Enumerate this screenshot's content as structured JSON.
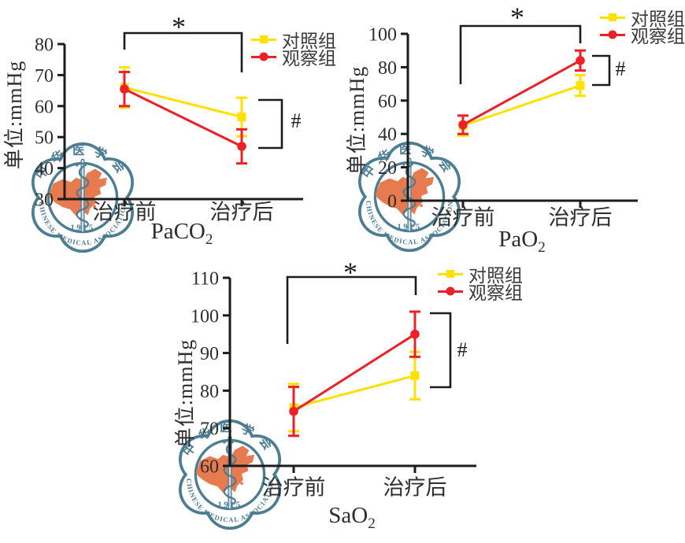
{
  "figure": {
    "background": "#ffffff"
  },
  "colors": {
    "axis": "#1c1c1c",
    "text": "#2e2e2e",
    "legend_text": "#3a3a3a",
    "control": "#ffe100",
    "observe": "#ec2027"
  },
  "watermark": {
    "top_text": "中华医学会",
    "bottom_text": "CHINESE MEDICAL ASSOCIATION",
    "year_text": "1915",
    "outline_color": "#4d7d92",
    "map_color": "#e87a50",
    "staff_color": "#cddee6"
  },
  "chart_data": [
    {
      "type": "line",
      "title_main": "PaCO",
      "title_sub": "2",
      "y_label": "单位:mmHg",
      "ylim": [
        30,
        80
      ],
      "yticks": [
        30,
        40,
        50,
        60,
        70,
        80
      ],
      "categories": [
        "治疗前",
        "治疗后"
      ],
      "series": [
        {
          "name": "对照组",
          "marker": "square",
          "color": "#ffe100",
          "values": [
            66,
            56.5
          ],
          "errors": [
            6.5,
            6.2
          ]
        },
        {
          "name": "观察组",
          "marker": "circle",
          "color": "#ec2027",
          "values": [
            65.5,
            47
          ],
          "errors": [
            5.5,
            5.5
          ]
        }
      ],
      "annotations": {
        "star": "*",
        "hash": "#"
      },
      "legend_position": "top-right",
      "grid": false
    },
    {
      "type": "line",
      "title_main": "PaO",
      "title_sub": "2",
      "y_label": "单位:mmHg",
      "ylim": [
        0,
        100
      ],
      "yticks": [
        0,
        20,
        40,
        60,
        80,
        100
      ],
      "categories": [
        "治疗前",
        "治疗后"
      ],
      "series": [
        {
          "name": "对照组",
          "marker": "square",
          "color": "#ffe100",
          "values": [
            45,
            69
          ],
          "errors": [
            6,
            6.2
          ]
        },
        {
          "name": "观察组",
          "marker": "circle",
          "color": "#ec2027",
          "values": [
            45.5,
            84
          ],
          "errors": [
            5.5,
            6
          ]
        }
      ],
      "annotations": {
        "star": "*",
        "hash": "#"
      },
      "legend_position": "top-right",
      "grid": false
    },
    {
      "type": "line",
      "title_main": "SaO",
      "title_sub": "2",
      "y_label": "单位:mmHg",
      "ylim": [
        60,
        110
      ],
      "yticks": [
        60,
        70,
        80,
        90,
        100,
        110
      ],
      "categories": [
        "治疗前",
        "治疗后"
      ],
      "series": [
        {
          "name": "对照组",
          "marker": "square",
          "color": "#ffe100",
          "values": [
            75.5,
            84
          ],
          "errors": [
            6.3,
            6.3
          ]
        },
        {
          "name": "观察组",
          "marker": "circle",
          "color": "#ec2027",
          "values": [
            74.5,
            95
          ],
          "errors": [
            6.5,
            6
          ]
        }
      ],
      "annotations": {
        "star": "*",
        "hash": "#"
      },
      "legend_position": "top-right",
      "grid": false
    }
  ]
}
